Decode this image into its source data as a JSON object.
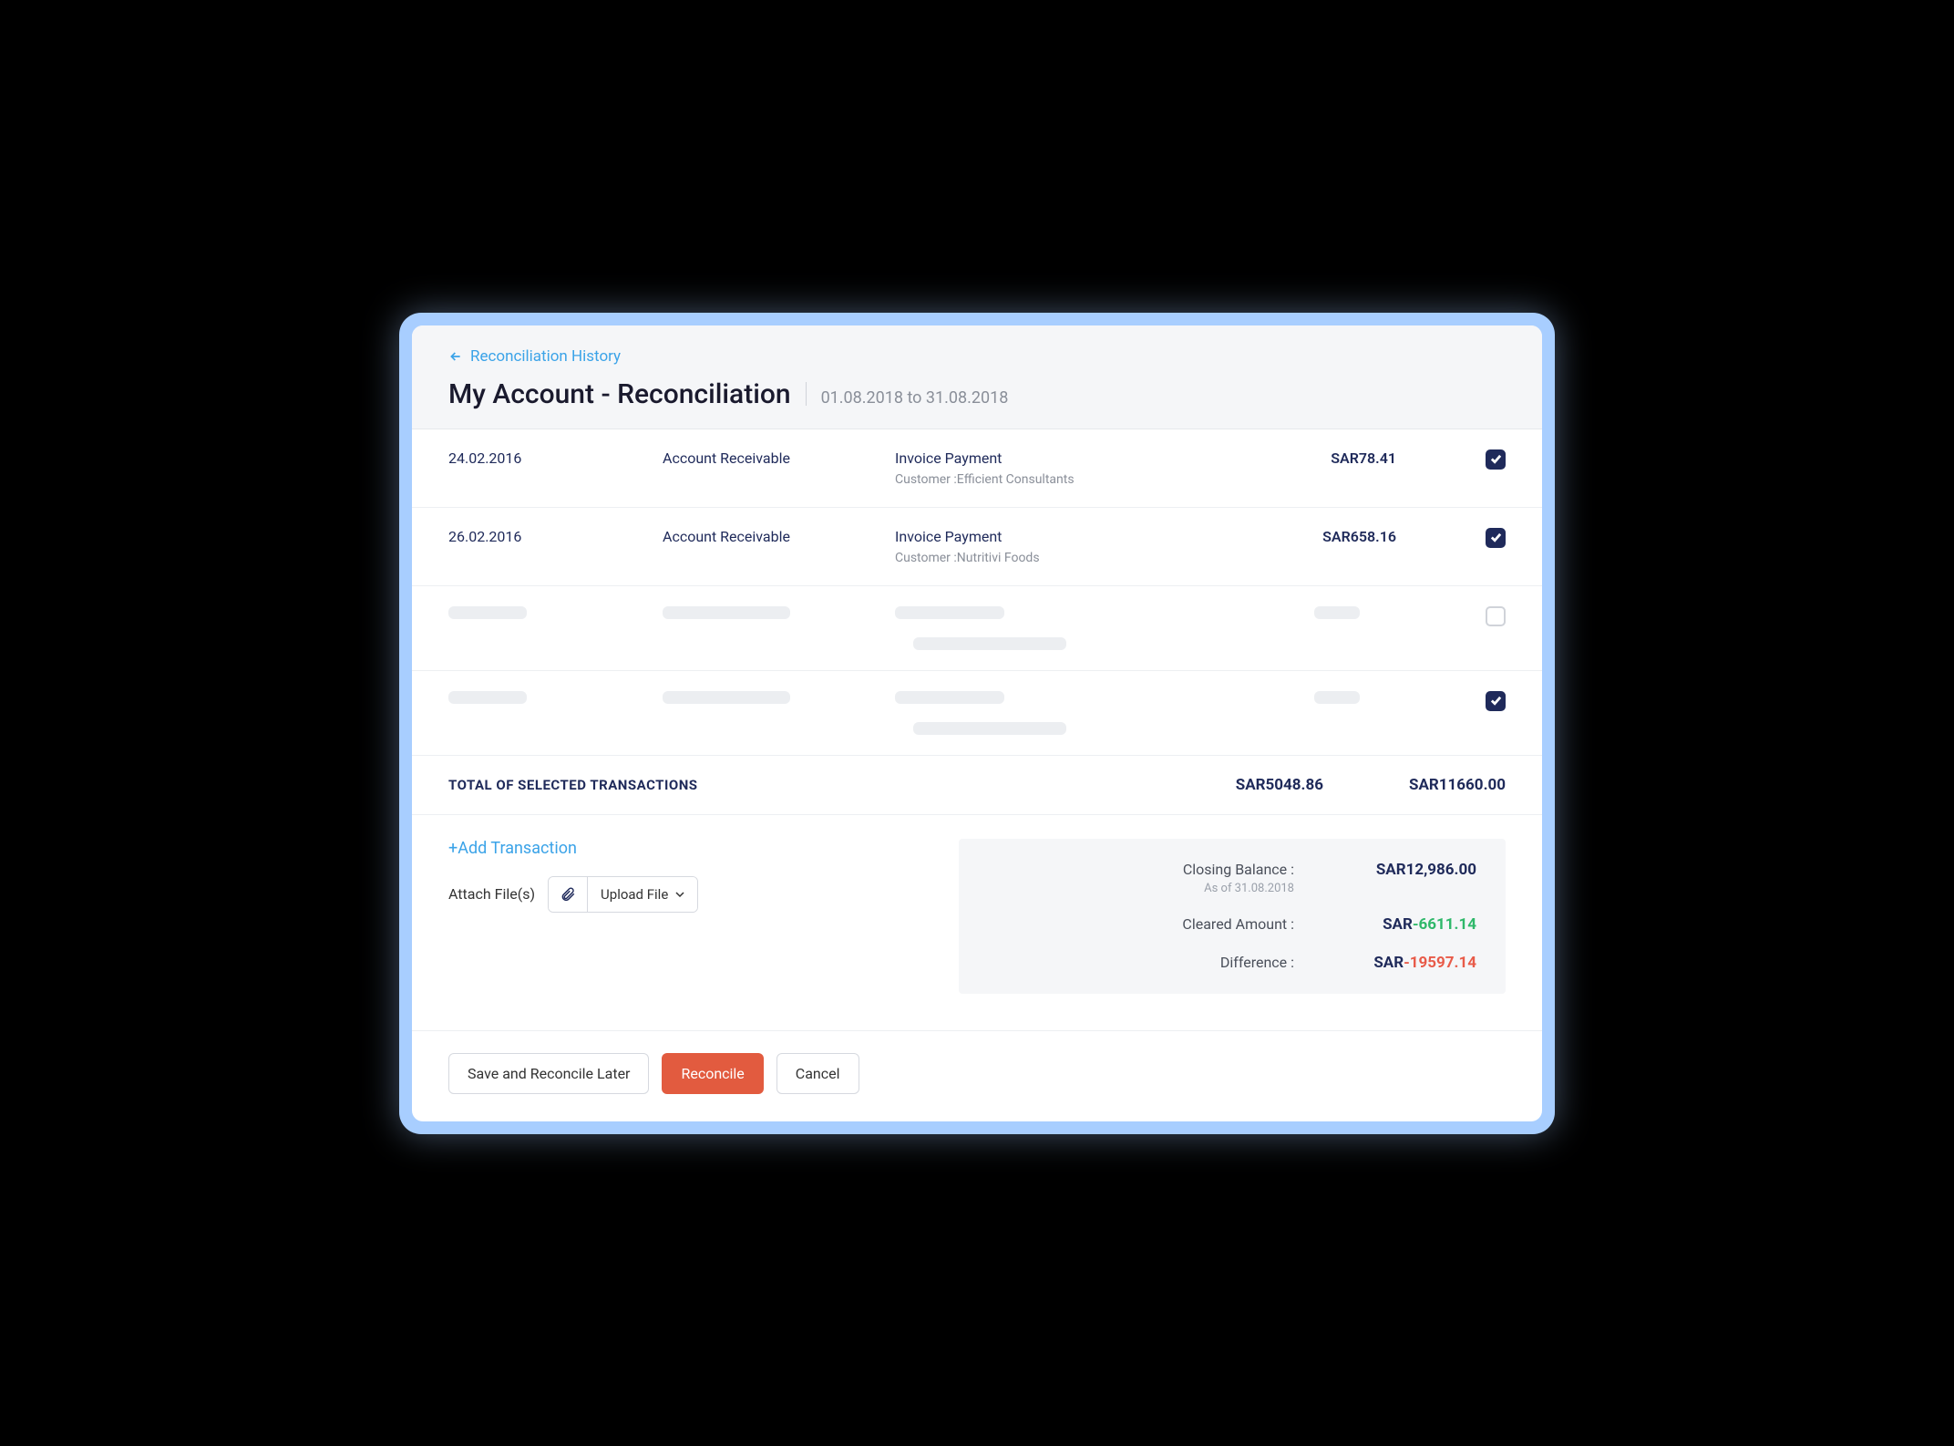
{
  "header": {
    "back_label": "Reconciliation History",
    "title": "My Account - Reconciliation",
    "date_range": "01.08.2018 to 31.08.2018"
  },
  "transactions": [
    {
      "date": "24.02.2016",
      "account": "Account Receivable",
      "desc_line1": "Invoice Payment",
      "desc_line2": "Customer :Efficient Consultants",
      "amount": "SAR78.41",
      "checked": true,
      "placeholder": false
    },
    {
      "date": "26.02.2016",
      "account": "Account Receivable",
      "desc_line1": "Invoice Payment",
      "desc_line2": "Customer :Nutritivi Foods",
      "amount": "SAR658.16",
      "checked": true,
      "placeholder": false
    },
    {
      "placeholder": true,
      "checked": false
    },
    {
      "placeholder": true,
      "checked": true
    }
  ],
  "totals": {
    "label": "TOTAL OF SELECTED TRANSACTIONS",
    "col1": "SAR5048.86",
    "col2": "SAR11660.00"
  },
  "actions_panel": {
    "add_transaction": "+Add Transaction",
    "attach_label": "Attach File(s)",
    "upload_label": "Upload File"
  },
  "summary": {
    "closing_label": "Closing Balance :",
    "closing_sub": "As of 31.08.2018",
    "closing_val": "SAR12,986.00",
    "cleared_label": "Cleared Amount :",
    "cleared_prefix": "SAR",
    "cleared_val": "-6611.14",
    "diff_label": "Difference :",
    "diff_prefix": "SAR",
    "diff_val": "-19597.14"
  },
  "footer": {
    "save": "Save and Reconcile Later",
    "reconcile": "Reconcile",
    "cancel": "Cancel"
  },
  "colors": {
    "accent_blue": "#3ba3e8",
    "dark_navy": "#1f2a5a",
    "primary_red": "#e25b3f",
    "green": "#2fb86a",
    "red_text": "#e85b49",
    "glow": "#a8ceff"
  }
}
